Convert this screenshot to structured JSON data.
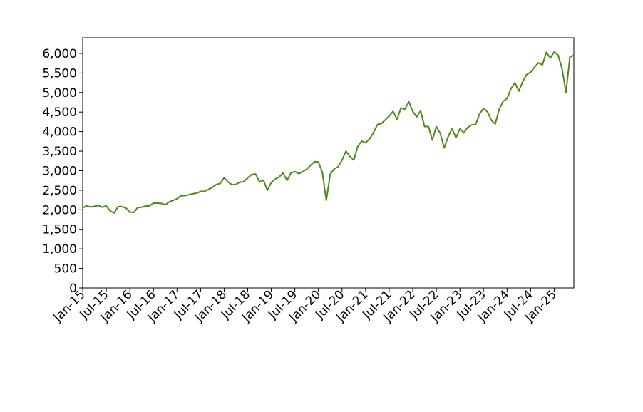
{
  "chart_data": {
    "type": "line",
    "color": "#4c8a1c",
    "x": [
      "2015-01",
      "2015-02",
      "2015-03",
      "2015-04",
      "2015-05",
      "2015-06",
      "2015-07",
      "2015-08",
      "2015-09",
      "2015-10",
      "2015-11",
      "2015-12",
      "2016-01",
      "2016-02",
      "2016-03",
      "2016-04",
      "2016-05",
      "2016-06",
      "2016-07",
      "2016-08",
      "2016-09",
      "2016-10",
      "2016-11",
      "2016-12",
      "2017-01",
      "2017-02",
      "2017-03",
      "2017-04",
      "2017-05",
      "2017-06",
      "2017-07",
      "2017-08",
      "2017-09",
      "2017-10",
      "2017-11",
      "2017-12",
      "2018-01",
      "2018-02",
      "2018-03",
      "2018-04",
      "2018-05",
      "2018-06",
      "2018-07",
      "2018-08",
      "2018-09",
      "2018-10",
      "2018-11",
      "2018-12",
      "2019-01",
      "2019-02",
      "2019-03",
      "2019-04",
      "2019-05",
      "2019-06",
      "2019-07",
      "2019-08",
      "2019-09",
      "2019-10",
      "2019-11",
      "2019-12",
      "2020-01",
      "2020-02",
      "2020-03",
      "2020-04",
      "2020-05",
      "2020-06",
      "2020-07",
      "2020-08",
      "2020-09",
      "2020-10",
      "2020-11",
      "2020-12",
      "2021-01",
      "2021-02",
      "2021-03",
      "2021-04",
      "2021-05",
      "2021-06",
      "2021-07",
      "2021-08",
      "2021-09",
      "2021-10",
      "2021-11",
      "2021-12",
      "2022-01",
      "2022-02",
      "2022-03",
      "2022-04",
      "2022-05",
      "2022-06",
      "2022-07",
      "2022-08",
      "2022-09",
      "2022-10",
      "2022-11",
      "2022-12",
      "2023-01",
      "2023-02",
      "2023-03",
      "2023-04",
      "2023-05",
      "2023-06",
      "2023-07",
      "2023-08",
      "2023-09",
      "2023-10",
      "2023-11",
      "2023-12",
      "2024-01",
      "2024-02",
      "2024-03",
      "2024-04",
      "2024-05",
      "2024-06",
      "2024-07",
      "2024-08",
      "2024-09",
      "2024-10",
      "2024-11",
      "2024-12",
      "2025-01",
      "2025-02",
      "2025-03",
      "2025-04",
      "2025-05",
      "2025-06"
    ],
    "values": [
      2050,
      2100,
      2070,
      2090,
      2110,
      2065,
      2100,
      1970,
      1920,
      2080,
      2080,
      2045,
      1940,
      1930,
      2060,
      2065,
      2095,
      2100,
      2170,
      2170,
      2165,
      2125,
      2200,
      2240,
      2280,
      2360,
      2360,
      2385,
      2410,
      2425,
      2470,
      2470,
      2520,
      2575,
      2645,
      2675,
      2820,
      2710,
      2640,
      2650,
      2705,
      2720,
      2815,
      2900,
      2915,
      2710,
      2760,
      2500,
      2700,
      2785,
      2835,
      2945,
      2750,
      2940,
      2980,
      2925,
      2975,
      3035,
      3140,
      3230,
      3225,
      2955,
      2240,
      2910,
      3045,
      3100,
      3270,
      3500,
      3365,
      3270,
      3620,
      3755,
      3715,
      3810,
      3970,
      4180,
      4205,
      4300,
      4395,
      4520,
      4310,
      4605,
      4570,
      4765,
      4515,
      4375,
      4530,
      4130,
      4130,
      3785,
      4130,
      3955,
      3585,
      3870,
      4080,
      3840,
      4075,
      3970,
      4110,
      4170,
      4180,
      4450,
      4590,
      4510,
      4290,
      4195,
      4570,
      4770,
      4850,
      5100,
      5250,
      5035,
      5280,
      5460,
      5520,
      5650,
      5760,
      5705,
      6030,
      5880,
      6040,
      5955,
      5610,
      5000,
      5910,
      5950
    ],
    "xlim": [
      "2015-01",
      "2025-06"
    ],
    "xticks": [
      {
        "value": "2015-01",
        "label": "Jan-15"
      },
      {
        "value": "2015-07",
        "label": "Jul-15"
      },
      {
        "value": "2016-01",
        "label": "Jan-16"
      },
      {
        "value": "2016-07",
        "label": "Jul-16"
      },
      {
        "value": "2017-01",
        "label": "Jan-17"
      },
      {
        "value": "2017-07",
        "label": "Jul-17"
      },
      {
        "value": "2018-01",
        "label": "Jan-18"
      },
      {
        "value": "2018-07",
        "label": "Jul-18"
      },
      {
        "value": "2019-01",
        "label": "Jan-19"
      },
      {
        "value": "2019-07",
        "label": "Jul-19"
      },
      {
        "value": "2020-01",
        "label": "Jan-20"
      },
      {
        "value": "2020-07",
        "label": "Jul-20"
      },
      {
        "value": "2021-01",
        "label": "Jan-21"
      },
      {
        "value": "2021-07",
        "label": "Jul-21"
      },
      {
        "value": "2022-01",
        "label": "Jan-22"
      },
      {
        "value": "2022-07",
        "label": "Jul-22"
      },
      {
        "value": "2023-01",
        "label": "Jan-23"
      },
      {
        "value": "2023-07",
        "label": "Jul-23"
      },
      {
        "value": "2024-01",
        "label": "Jan-24"
      },
      {
        "value": "2024-07",
        "label": "Jul-24"
      },
      {
        "value": "2025-01",
        "label": "Jan-25"
      }
    ],
    "ylim": [
      0,
      6400
    ],
    "yticks": [
      0,
      500,
      {
        "value": 1000,
        "label": "1,000"
      },
      {
        "value": 1500,
        "label": "1,500"
      },
      {
        "value": 2000,
        "label": "2,000"
      },
      {
        "value": 2500,
        "label": "2,500"
      },
      {
        "value": 3000,
        "label": "3,000"
      },
      {
        "value": 3500,
        "label": "3,500"
      },
      {
        "value": 4000,
        "label": "4,000"
      },
      {
        "value": 4500,
        "label": "4,500"
      },
      {
        "value": 5000,
        "label": "5,000"
      },
      {
        "value": 5500,
        "label": "5,500"
      },
      {
        "value": 6000,
        "label": "6,000"
      }
    ]
  }
}
